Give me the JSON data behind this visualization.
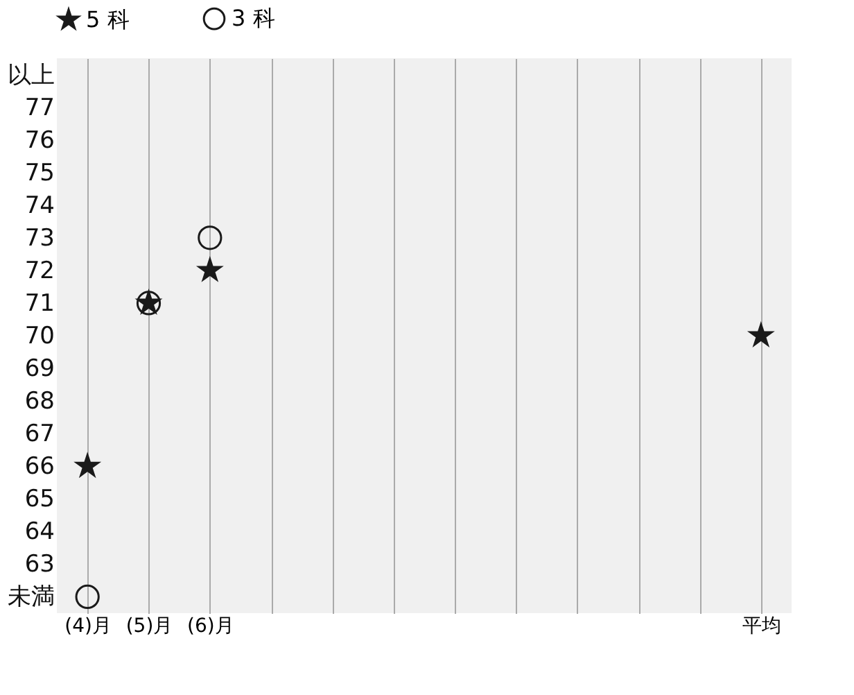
{
  "chart_data": {
    "type": "scatter",
    "categories": [
      "(4)月",
      "(5)月",
      "(6)月",
      null,
      null,
      null,
      null,
      null,
      null,
      null,
      null,
      "平均"
    ],
    "series": [
      {
        "name": "5 科",
        "color": "#1a1a1a",
        "marker": "star",
        "values": [
          66,
          71,
          72,
          null,
          null,
          null,
          null,
          null,
          null,
          null,
          null,
          70
        ]
      },
      {
        "name": "3 科",
        "color": "#1a1a1a",
        "marker": "circle",
        "values": [
          62,
          71,
          73,
          null,
          null,
          null,
          null,
          null,
          null,
          null,
          null,
          null
        ]
      }
    ],
    "ylim": [
      61.5,
      78.5
    ],
    "yticks": [
      {
        "value": 62,
        "label": "未満"
      },
      63,
      64,
      65,
      66,
      67,
      68,
      69,
      70,
      71,
      72,
      73,
      74,
      75,
      76,
      77,
      {
        "value": 78,
        "label": "以上"
      }
    ],
    "grid": "x",
    "legend": "top"
  }
}
